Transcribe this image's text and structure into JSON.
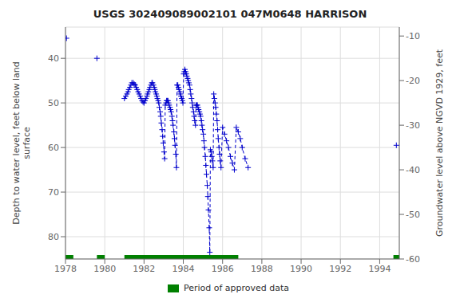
{
  "chart_data": {
    "type": "line",
    "title": "USGS 302409089002101 047M0648  HARRISON",
    "y_label": "Depth to water level, feet below land\nsurface",
    "y2_label": "Groundwater level above NGVD 1929, feet",
    "xlim": [
      1978,
      1995
    ],
    "xticks": [
      1978,
      1980,
      1982,
      1984,
      1986,
      1988,
      1990,
      1992,
      1994
    ],
    "ylim": [
      85,
      33
    ],
    "yticks": [
      40,
      50,
      60,
      70,
      80
    ],
    "y2lim": [
      -60,
      -8
    ],
    "y2ticks": [
      -10,
      -20,
      -30,
      -40,
      -50,
      -60
    ],
    "grid": true,
    "x": [
      1978.05,
      1979.6,
      1981.0,
      1981.07,
      1981.13,
      1981.18,
      1981.22,
      1981.28,
      1981.33,
      1981.38,
      1981.45,
      1981.5,
      1981.55,
      1981.6,
      1981.65,
      1981.7,
      1981.75,
      1981.8,
      1981.85,
      1981.9,
      1981.95,
      1982.0,
      1982.05,
      1982.1,
      1982.15,
      1982.18,
      1982.22,
      1982.27,
      1982.3,
      1982.35,
      1982.4,
      1982.43,
      1982.48,
      1982.52,
      1982.55,
      1982.58,
      1982.62,
      1982.65,
      1982.68,
      1982.72,
      1982.75,
      1982.78,
      1982.82,
      1982.85,
      1982.88,
      1982.92,
      1982.95,
      1982.98,
      1983.02,
      1983.05,
      1983.08,
      1983.12,
      1983.15,
      1983.18,
      1983.22,
      1983.25,
      1983.28,
      1983.32,
      1983.35,
      1983.38,
      1983.42,
      1983.45,
      1983.48,
      1983.52,
      1983.55,
      1983.58,
      1983.62,
      1983.65,
      1983.68,
      1983.72,
      1983.75,
      1983.78,
      1983.82,
      1983.85,
      1983.88,
      1983.92,
      1983.95,
      1983.98,
      1984.02,
      1984.05,
      1984.08,
      1984.12,
      1984.15,
      1984.18,
      1984.22,
      1984.25,
      1984.28,
      1984.32,
      1984.35,
      1984.38,
      1984.42,
      1984.45,
      1984.48,
      1984.52,
      1984.55,
      1984.58,
      1984.62,
      1984.65,
      1984.68,
      1984.72,
      1984.75,
      1984.78,
      1984.82,
      1984.85,
      1984.88,
      1984.92,
      1984.95,
      1984.98,
      1985.02,
      1985.05,
      1985.08,
      1985.12,
      1985.15,
      1985.18,
      1985.22,
      1985.25,
      1985.28,
      1985.32,
      1985.35,
      1985.38,
      1985.42,
      1985.45,
      1985.48,
      1985.52,
      1985.55,
      1985.58,
      1985.62,
      1985.65,
      1985.68,
      1985.72,
      1985.75,
      1985.78,
      1985.82,
      1985.85,
      1985.88,
      1985.92,
      1986.0,
      1986.1,
      1986.2,
      1986.3,
      1986.4,
      1986.5,
      1986.6,
      1986.7,
      1986.8,
      1986.9,
      1987.0,
      1987.15,
      1987.3,
      1994.85
    ],
    "series": [
      {
        "color": "#0000cc",
        "marker": "plus",
        "line_style": "none",
        "values": [
          35.5,
          40.0,
          49.0,
          48.5,
          48.0,
          47.5,
          47.0,
          46.5,
          46.0,
          45.5,
          45.5,
          45.8,
          46.0,
          46.5,
          47.0,
          47.5,
          48.0,
          48.5,
          49.0,
          49.5,
          49.8,
          50.0,
          49.5,
          49.0,
          48.5,
          48.0,
          47.5,
          47.0,
          46.5,
          46.0,
          45.5,
          45.5,
          46.0,
          46.5,
          47.0,
          47.5,
          48.0,
          48.5,
          49.0,
          49.5,
          50.0,
          51.0,
          52.0,
          53.0,
          54.5,
          56.0,
          57.5,
          59.0,
          61.0,
          62.5,
          50.5,
          50.0,
          49.5,
          49.5,
          49.5,
          50.0,
          50.5,
          51.0,
          51.5,
          52.0,
          53.0,
          54.0,
          55.0,
          56.5,
          58.0,
          59.5,
          61.5,
          64.5,
          46.0,
          46.0,
          46.5,
          47.0,
          47.5,
          48.0,
          48.5,
          49.0,
          49.5,
          50.0,
          43.5,
          43.0,
          42.5,
          43.0,
          43.5,
          44.0,
          44.5,
          45.0,
          45.5,
          46.0,
          47.0,
          48.0,
          49.0,
          50.0,
          51.0,
          52.0,
          53.0,
          54.0,
          55.0,
          50.5,
          50.5,
          50.5,
          51.0,
          51.5,
          52.0,
          52.5,
          53.0,
          54.0,
          55.0,
          56.0,
          57.0,
          58.5,
          60.0,
          62.0,
          64.0,
          66.0,
          68.5,
          71.0,
          74.0,
          78.0,
          83.5,
          60.5,
          61.0,
          62.0,
          63.0,
          64.5,
          48.0,
          49.0,
          50.0,
          51.0,
          52.5,
          54.0,
          56.0,
          58.0,
          60.0,
          61.5,
          63.0,
          64.5,
          55.5,
          57.0,
          58.5,
          60.0,
          62.0,
          63.5,
          65.0,
          55.5,
          56.5,
          58.0,
          60.0,
          62.5,
          64.5,
          59.5
        ]
      },
      {
        "color": "#0000cc",
        "marker": "none",
        "line_style": "dashed",
        "values": [
          null,
          null,
          49.0,
          48.5,
          48.0,
          47.5,
          47.0,
          46.5,
          46.0,
          45.5,
          45.5,
          45.8,
          46.0,
          46.5,
          47.0,
          47.5,
          48.0,
          48.5,
          49.0,
          49.5,
          49.8,
          50.0,
          49.5,
          49.0,
          48.5,
          48.0,
          47.5,
          47.0,
          46.5,
          46.0,
          45.5,
          45.5,
          46.0,
          46.5,
          47.0,
          47.5,
          48.0,
          48.5,
          49.0,
          49.5,
          50.0,
          51.0,
          52.0,
          53.0,
          54.5,
          56.0,
          57.5,
          59.0,
          61.0,
          62.5,
          50.5,
          50.0,
          49.5,
          49.5,
          49.5,
          50.0,
          50.5,
          51.0,
          51.5,
          52.0,
          53.0,
          54.0,
          55.0,
          56.5,
          58.0,
          59.5,
          61.5,
          64.5,
          46.0,
          46.0,
          46.5,
          47.0,
          47.5,
          48.0,
          48.5,
          49.0,
          49.5,
          50.0,
          43.5,
          43.0,
          42.5,
          43.0,
          43.5,
          44.0,
          44.5,
          45.0,
          45.5,
          46.0,
          47.0,
          48.0,
          49.0,
          50.0,
          51.0,
          52.0,
          53.0,
          54.0,
          55.0,
          50.5,
          50.5,
          50.5,
          51.0,
          51.5,
          52.0,
          52.5,
          53.0,
          54.0,
          55.0,
          56.0,
          57.0,
          58.5,
          60.0,
          62.0,
          64.0,
          66.0,
          68.5,
          71.0,
          74.0,
          78.0,
          83.5,
          60.5,
          61.0,
          62.0,
          63.0,
          64.5,
          48.0,
          49.0,
          50.0,
          51.0,
          52.5,
          54.0,
          56.0,
          58.0,
          60.0,
          61.5,
          63.0,
          64.5,
          55.5,
          57.0,
          58.5,
          60.0,
          62.0,
          63.5,
          65.0,
          55.5,
          56.5,
          58.0,
          60.0,
          62.5,
          64.5,
          null
        ]
      }
    ],
    "spans": [
      {
        "name": "Period of approved data",
        "color": "#008000",
        "ranges": [
          [
            1978.0,
            1978.4
          ],
          [
            1979.6,
            1980.0
          ],
          [
            1981.0,
            1986.8
          ],
          [
            1994.7,
            1995.0
          ]
        ]
      }
    ]
  }
}
